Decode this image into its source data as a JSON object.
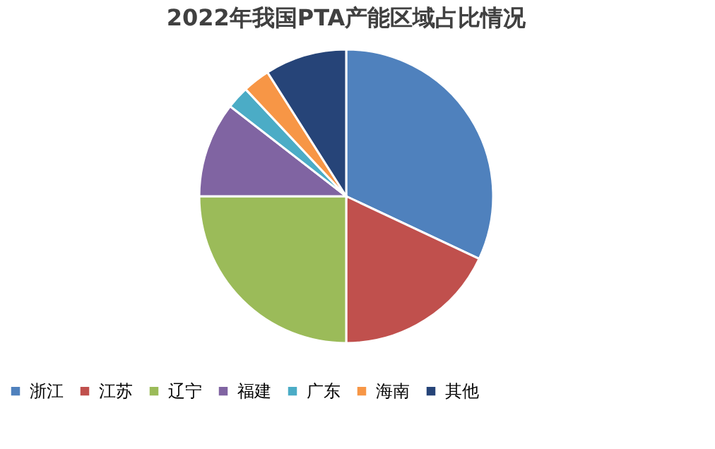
{
  "chart_data": {
    "type": "pie",
    "title": "2022年我国PTA产能区域占比情况",
    "categories": [
      "浙江",
      "江苏",
      "辽宁",
      "福建",
      "广东",
      "海南",
      "其他"
    ],
    "values": [
      32,
      18,
      25,
      10.5,
      2.5,
      3,
      9
    ],
    "colors": [
      "#4f81bd",
      "#c0504d",
      "#9bbb59",
      "#8064a2",
      "#4bacc6",
      "#f79646",
      "#264478"
    ],
    "legend": "bottom"
  }
}
